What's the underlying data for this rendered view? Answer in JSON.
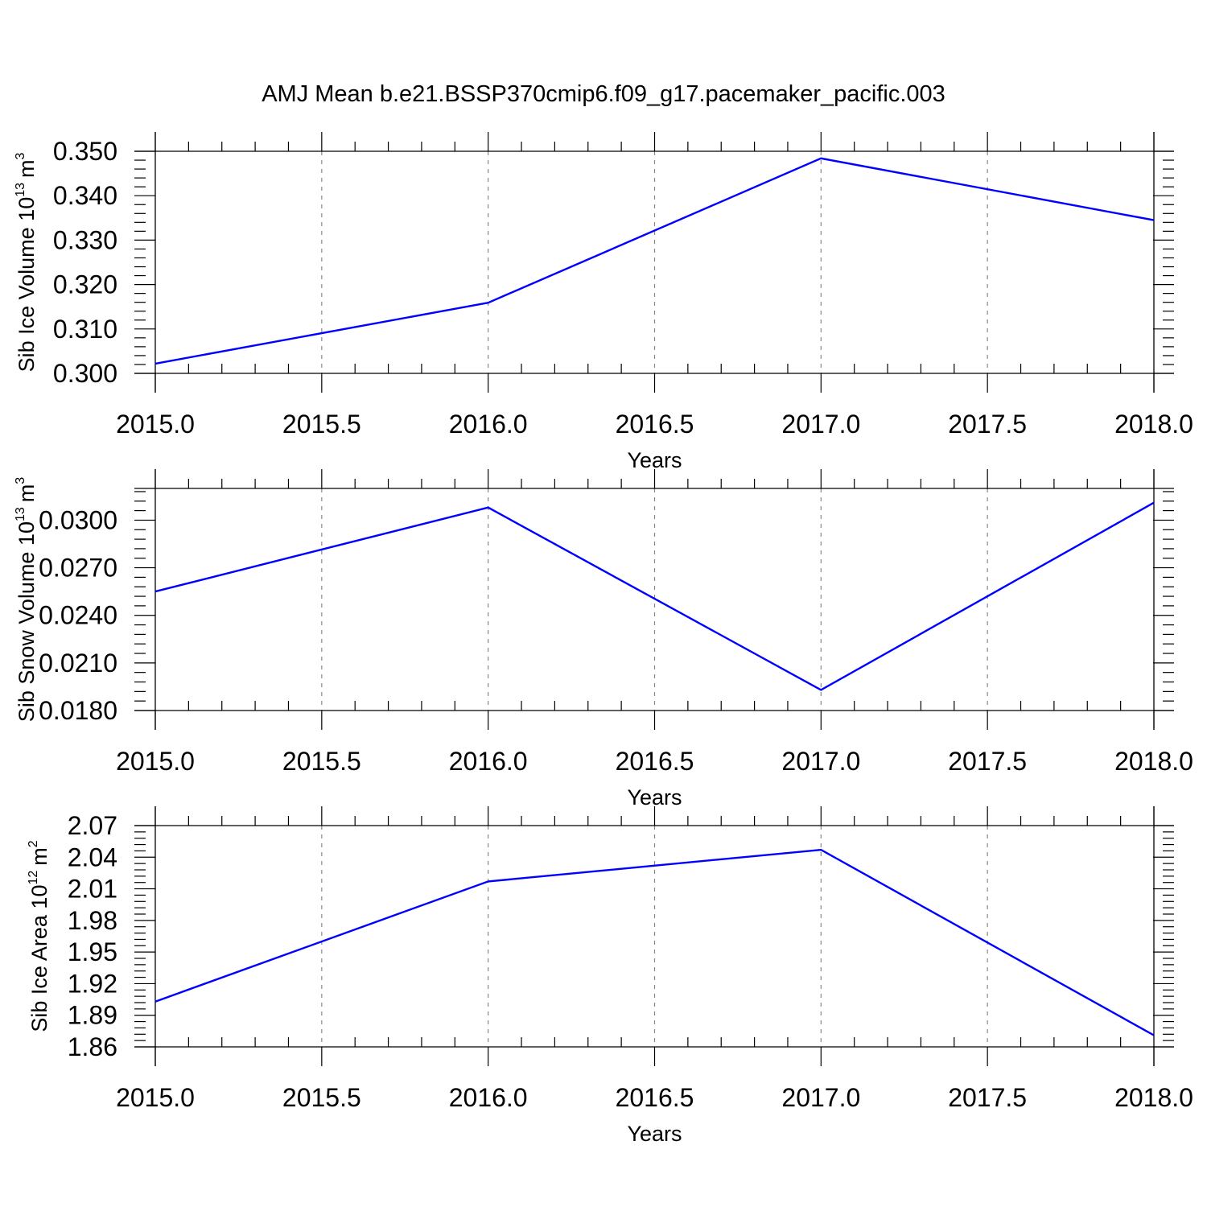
{
  "title": "AMJ Mean b.e21.BSSP370cmip6.f09_g17.pacemaker_pacific.003",
  "colors": {
    "line": "#0000ff",
    "grid": "#888888",
    "axis": "#000000"
  },
  "chart_data": [
    {
      "type": "line",
      "ylabel": "Sib Ice Volume 10",
      "ylabel_sup": "13",
      "ylabel_unit": "m",
      "ylabel_unit_sup": "3",
      "xlabel": "Years",
      "xlim": [
        2015.0,
        2018.0
      ],
      "ylim": [
        0.3,
        0.35
      ],
      "xticks": [
        "2015.0",
        "2015.5",
        "2016.0",
        "2016.5",
        "2017.0",
        "2017.5",
        "2018.0"
      ],
      "yticks": [
        "0.300",
        "0.310",
        "0.320",
        "0.330",
        "0.340",
        "0.350"
      ],
      "grid": true,
      "series": [
        {
          "x": [
            2015,
            2016,
            2017,
            2018
          ],
          "values": [
            0.3022,
            0.3159,
            0.3484,
            0.3345
          ]
        }
      ]
    },
    {
      "type": "line",
      "ylabel": "Sib Snow Volume 10",
      "ylabel_sup": "13",
      "ylabel_unit": "m",
      "ylabel_unit_sup": "3",
      "xlabel": "Years",
      "xlim": [
        2015.0,
        2018.0
      ],
      "ylim": [
        0.018,
        0.032
      ],
      "xticks": [
        "2015.0",
        "2015.5",
        "2016.0",
        "2016.5",
        "2017.0",
        "2017.5",
        "2018.0"
      ],
      "yticks": [
        "0.0180",
        "0.0210",
        "0.0240",
        "0.0270",
        "0.0300"
      ],
      "grid": true,
      "series": [
        {
          "x": [
            2015,
            2016,
            2017,
            2018
          ],
          "values": [
            0.0255,
            0.0308,
            0.0193,
            0.0311
          ]
        }
      ]
    },
    {
      "type": "line",
      "ylabel": "Sib Ice Area 10",
      "ylabel_sup": "12",
      "ylabel_unit": "m",
      "ylabel_unit_sup": "2",
      "xlabel": "Years",
      "xlim": [
        2015.0,
        2018.0
      ],
      "ylim": [
        1.86,
        2.07
      ],
      "xticks": [
        "2015.0",
        "2015.5",
        "2016.0",
        "2016.5",
        "2017.0",
        "2017.5",
        "2018.0"
      ],
      "yticks": [
        "1.86",
        "1.89",
        "1.92",
        "1.95",
        "1.98",
        "2.01",
        "2.04",
        "2.07"
      ],
      "grid": true,
      "series": [
        {
          "x": [
            2015,
            2016,
            2017,
            2018
          ],
          "values": [
            1.903,
            2.017,
            2.047,
            1.871
          ]
        }
      ]
    }
  ]
}
